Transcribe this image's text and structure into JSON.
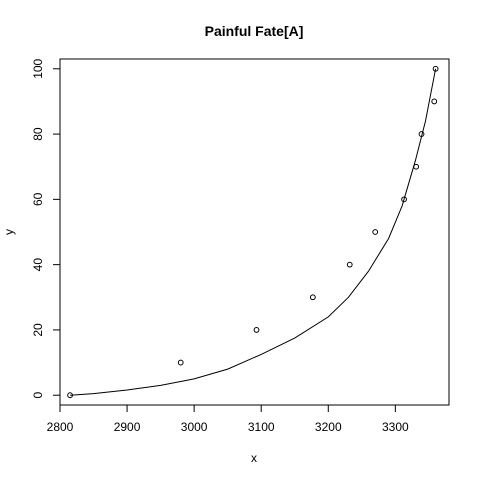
{
  "chart_data": {
    "type": "scatter",
    "title": "Painful Fate[A]",
    "xlabel": "x",
    "ylabel": "y",
    "xlim": [
      2800,
      3380
    ],
    "ylim": [
      -3,
      103
    ],
    "grid": false,
    "x_ticks": [
      2800,
      2900,
      3000,
      3100,
      3200,
      3300
    ],
    "y_ticks": [
      0,
      20,
      40,
      60,
      80,
      100
    ],
    "x_tick_labels": [
      "2800",
      "2900",
      "3000",
      "3100",
      "3200",
      "3300"
    ],
    "y_tick_labels": [
      "0",
      "20",
      "40",
      "60",
      "80",
      "100"
    ],
    "points": [
      {
        "x": 2815,
        "y": 0
      },
      {
        "x": 2980,
        "y": 10
      },
      {
        "x": 3093,
        "y": 20
      },
      {
        "x": 3177,
        "y": 30
      },
      {
        "x": 3232,
        "y": 40
      },
      {
        "x": 3270,
        "y": 50
      },
      {
        "x": 3313,
        "y": 60
      },
      {
        "x": 3331,
        "y": 70
      },
      {
        "x": 3339,
        "y": 80
      },
      {
        "x": 3358,
        "y": 90
      },
      {
        "x": 3360,
        "y": 100
      }
    ],
    "fitted_curve": {
      "x": [
        2815,
        2850,
        2900,
        2950,
        3000,
        3050,
        3100,
        3150,
        3200,
        3230,
        3260,
        3290,
        3310,
        3330,
        3345,
        3360
      ],
      "y": [
        0,
        0.5,
        1.6,
        3,
        5,
        8,
        12.5,
        17.5,
        24,
        30,
        38,
        48,
        58,
        72,
        84,
        100
      ]
    }
  }
}
